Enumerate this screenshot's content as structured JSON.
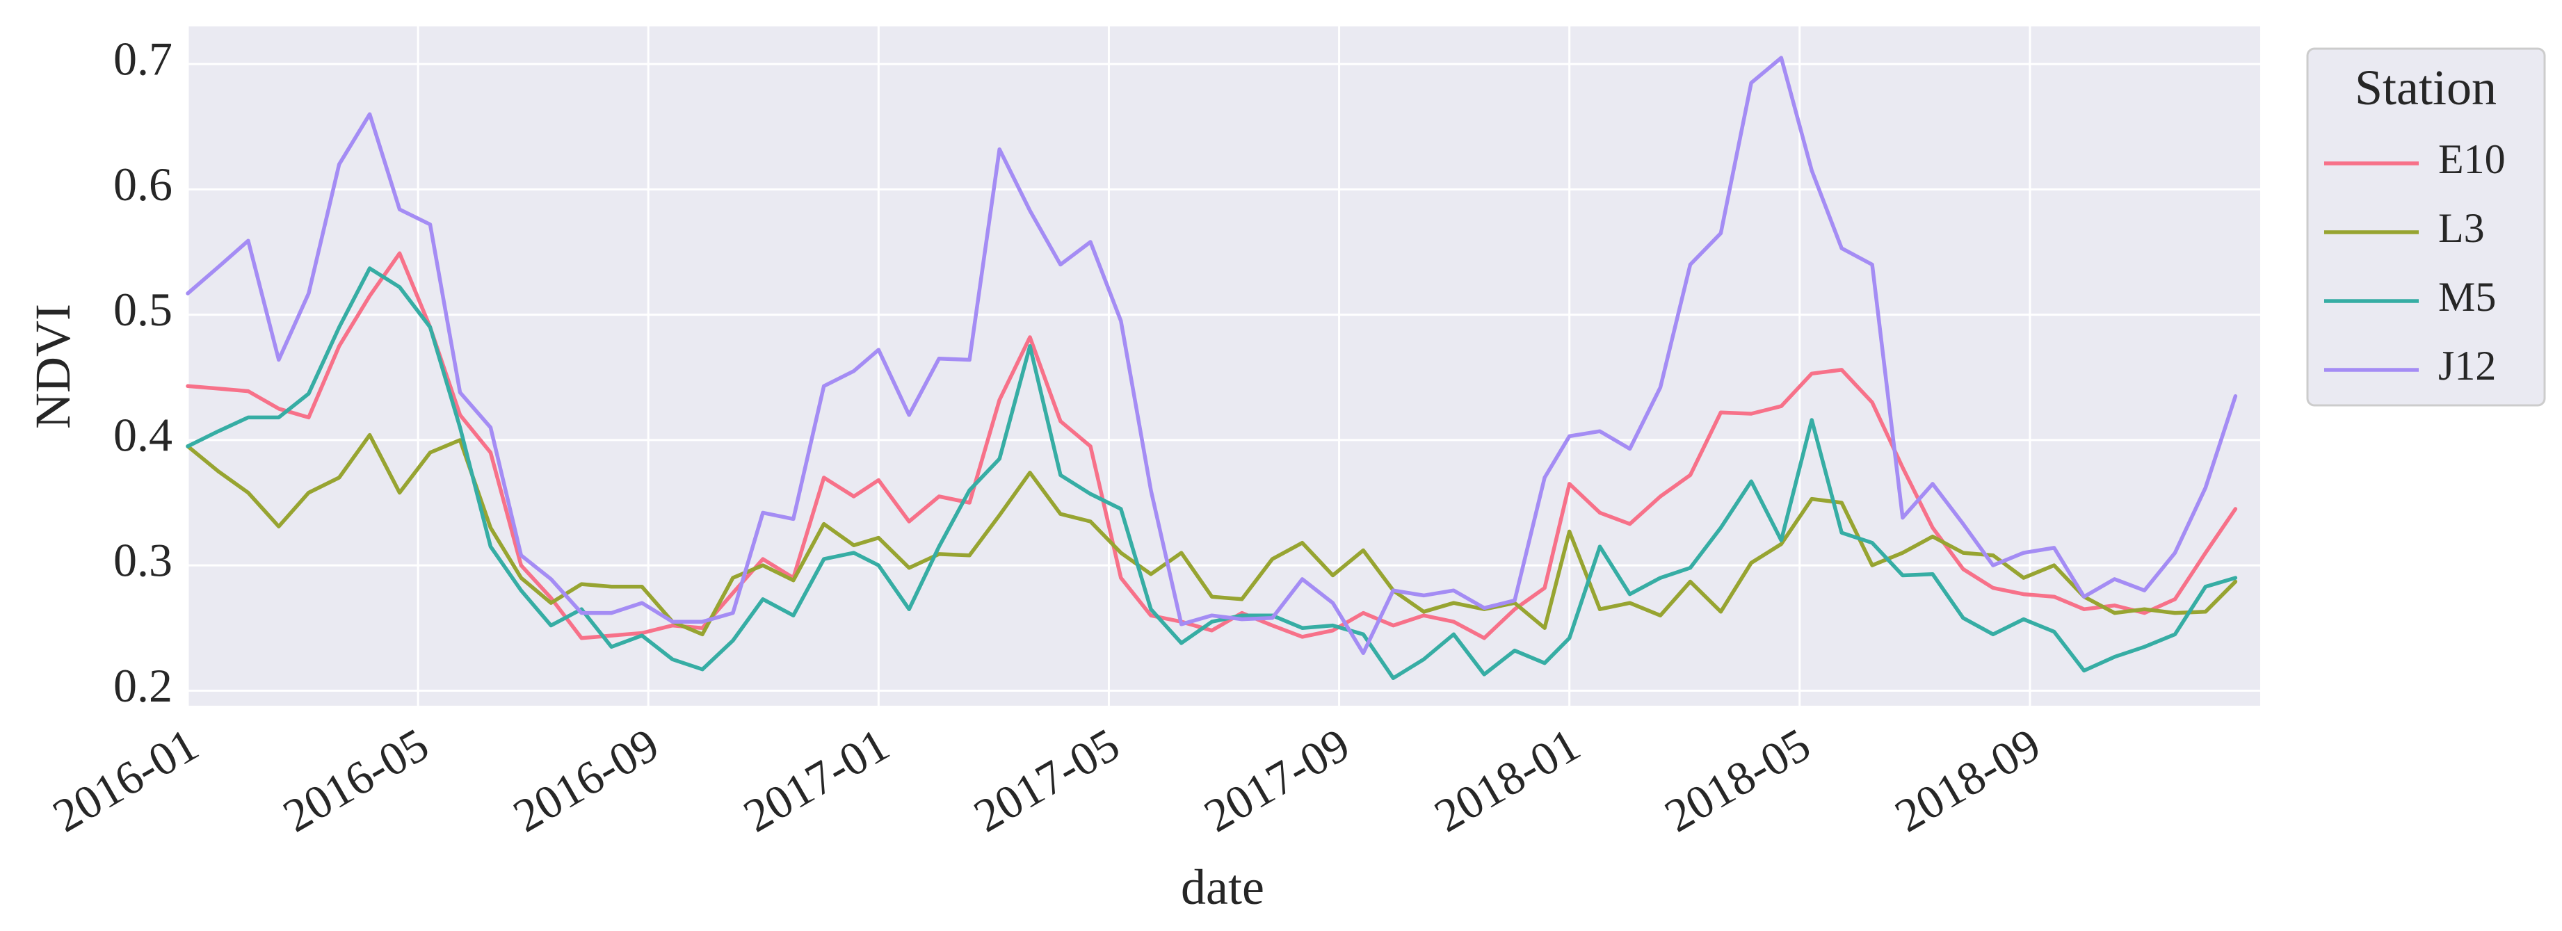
{
  "chart_data": {
    "type": "line",
    "x_label": "date",
    "y_label": "NDVI",
    "legend_title": "Station",
    "legend_position": "outside right",
    "grid": true,
    "x": [
      0,
      0.53,
      1.05,
      1.58,
      2.1,
      2.63,
      3.16,
      3.68,
      4.21,
      4.73,
      5.26,
      5.79,
      6.31,
      6.84,
      7.36,
      7.89,
      8.42,
      8.94,
      9.47,
      9.99,
      10.52,
      11.05,
      11.57,
      12,
      12.53,
      13.05,
      13.58,
      14.1,
      14.63,
      15.16,
      15.68,
      16.21,
      16.73,
      17.26,
      17.79,
      18.31,
      18.84,
      19.36,
      19.89,
      20.42,
      20.94,
      21.47,
      21.99,
      22.52,
      23.05,
      23.57,
      24,
      24.53,
      25.05,
      25.58,
      26.1,
      26.63,
      27.16,
      27.68,
      28.21,
      28.73,
      29.26,
      29.79,
      30.31,
      30.84,
      31.36,
      31.89,
      32.42,
      32.94,
      33.47,
      33.99,
      34.52,
      35.05,
      35.57
    ],
    "xlim": [
      0,
      36
    ],
    "xticks": [
      {
        "value": 0,
        "label": "2016-01"
      },
      {
        "value": 4,
        "label": "2016-05"
      },
      {
        "value": 8,
        "label": "2016-09"
      },
      {
        "value": 12,
        "label": "2017-01"
      },
      {
        "value": 16,
        "label": "2017-05"
      },
      {
        "value": 20,
        "label": "2017-09"
      },
      {
        "value": 24,
        "label": "2018-01"
      },
      {
        "value": 28,
        "label": "2018-05"
      },
      {
        "value": 32,
        "label": "2018-09"
      }
    ],
    "ylim": [
      0.188,
      0.73
    ],
    "yticks": [
      0.2,
      0.3,
      0.4,
      0.5,
      0.6,
      0.7
    ],
    "series": [
      {
        "name": "E10",
        "color": "#f77189",
        "values": [
          0.443,
          0.441,
          0.439,
          0.425,
          0.418,
          0.475,
          0.515,
          0.549,
          0.49,
          0.42,
          0.39,
          0.3,
          0.274,
          0.242,
          0.244,
          0.246,
          0.252,
          0.25,
          0.278,
          0.305,
          0.29,
          0.37,
          0.355,
          0.368,
          0.335,
          0.355,
          0.35,
          0.432,
          0.482,
          0.415,
          0.395,
          0.29,
          0.26,
          0.255,
          0.248,
          0.262,
          0.252,
          0.243,
          0.248,
          0.262,
          0.252,
          0.26,
          0.255,
          0.242,
          0.265,
          0.282,
          0.365,
          0.342,
          0.333,
          0.355,
          0.372,
          0.422,
          0.421,
          0.427,
          0.453,
          0.456,
          0.43,
          0.378,
          0.33,
          0.297,
          0.282,
          0.277,
          0.275,
          0.265,
          0.268,
          0.262,
          0.273,
          0.31,
          0.345
        ]
      },
      {
        "name": "L3",
        "color": "#97a431",
        "values": [
          0.395,
          0.375,
          0.358,
          0.331,
          0.358,
          0.37,
          0.404,
          0.358,
          0.39,
          0.4,
          0.33,
          0.29,
          0.27,
          0.285,
          0.283,
          0.283,
          0.255,
          0.245,
          0.29,
          0.3,
          0.288,
          0.333,
          0.316,
          0.322,
          0.298,
          0.309,
          0.308,
          0.34,
          0.374,
          0.341,
          0.335,
          0.31,
          0.293,
          0.31,
          0.275,
          0.273,
          0.305,
          0.318,
          0.292,
          0.312,
          0.28,
          0.263,
          0.27,
          0.265,
          0.27,
          0.25,
          0.327,
          0.265,
          0.27,
          0.26,
          0.287,
          0.263,
          0.302,
          0.317,
          0.353,
          0.35,
          0.3,
          0.31,
          0.323,
          0.31,
          0.308,
          0.29,
          0.3,
          0.275,
          0.262,
          0.265,
          0.262,
          0.263,
          0.287
        ]
      },
      {
        "name": "M5",
        "color": "#36ada4",
        "values": [
          0.395,
          0.407,
          0.418,
          0.418,
          0.437,
          0.49,
          0.537,
          0.522,
          0.49,
          0.41,
          0.315,
          0.28,
          0.252,
          0.265,
          0.235,
          0.244,
          0.225,
          0.217,
          0.24,
          0.273,
          0.26,
          0.305,
          0.31,
          0.3,
          0.265,
          0.315,
          0.36,
          0.385,
          0.475,
          0.372,
          0.357,
          0.345,
          0.265,
          0.238,
          0.255,
          0.26,
          0.26,
          0.25,
          0.252,
          0.245,
          0.21,
          0.225,
          0.245,
          0.213,
          0.232,
          0.222,
          0.242,
          0.315,
          0.277,
          0.29,
          0.298,
          0.33,
          0.367,
          0.32,
          0.416,
          0.326,
          0.318,
          0.292,
          0.293,
          0.258,
          0.245,
          0.257,
          0.247,
          0.216,
          0.227,
          0.235,
          0.245,
          0.283,
          0.29
        ]
      },
      {
        "name": "J12",
        "color": "#a48cf4",
        "values": [
          0.517,
          0.538,
          0.559,
          0.464,
          0.517,
          0.62,
          0.66,
          0.584,
          0.572,
          0.438,
          0.41,
          0.308,
          0.289,
          0.262,
          0.262,
          0.27,
          0.255,
          0.255,
          0.262,
          0.342,
          0.337,
          0.443,
          0.455,
          0.472,
          0.42,
          0.465,
          0.464,
          0.632,
          0.583,
          0.54,
          0.558,
          0.495,
          0.36,
          0.253,
          0.26,
          0.257,
          0.258,
          0.289,
          0.27,
          0.23,
          0.28,
          0.276,
          0.28,
          0.266,
          0.272,
          0.37,
          0.403,
          0.407,
          0.393,
          0.442,
          0.54,
          0.565,
          0.685,
          0.705,
          0.615,
          0.553,
          0.54,
          0.338,
          0.365,
          0.333,
          0.3,
          0.31,
          0.314,
          0.275,
          0.289,
          0.28,
          0.31,
          0.362,
          0.435
        ]
      }
    ]
  }
}
